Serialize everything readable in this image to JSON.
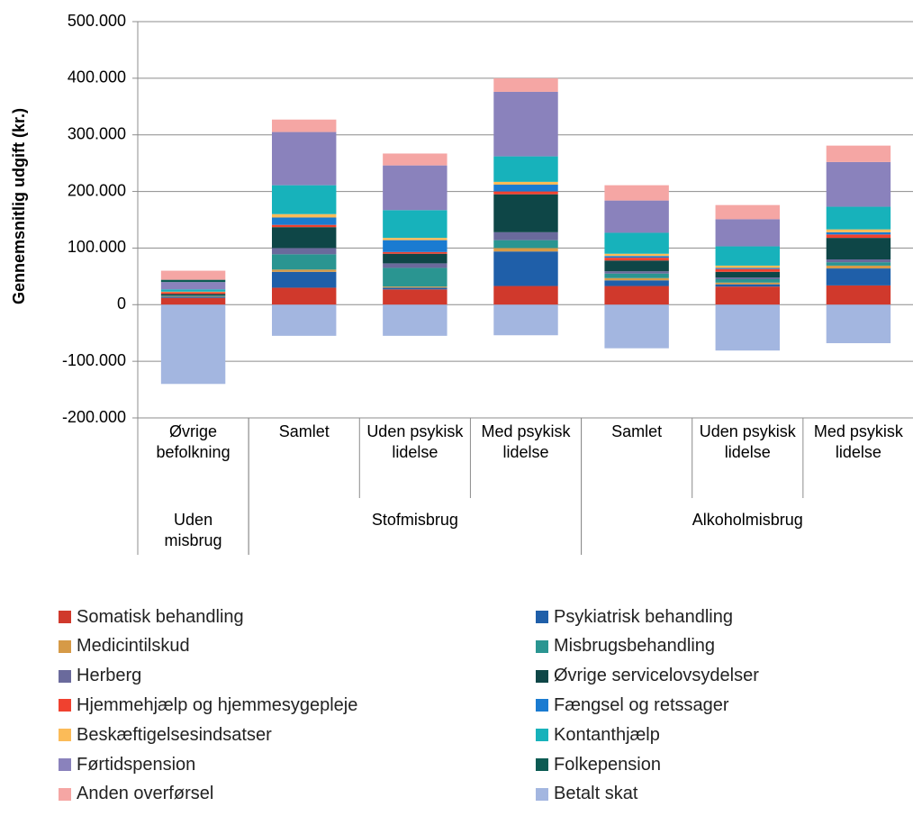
{
  "chart_data": {
    "type": "stacked_bar",
    "y_label": "Gennemsnitlig udgift (kr.)",
    "ylim": [
      -200000,
      500000
    ],
    "yticks": [
      {
        "value": -200000,
        "label": "-200.000"
      },
      {
        "value": -100000,
        "label": "-100.000"
      },
      0,
      {
        "value": 100000,
        "label": "100.000"
      },
      {
        "value": 200000,
        "label": "200.000"
      },
      {
        "value": 300000,
        "label": "300.000"
      },
      {
        "value": 400000,
        "label": "400.000"
      },
      {
        "value": 500000,
        "label": "500.000"
      }
    ],
    "grid": true,
    "legend": "bottom",
    "groups": [
      {
        "name": "Uden misbrug",
        "categories": [
          "Øvrige befolkning"
        ]
      },
      {
        "name": "Stofmisbrug",
        "categories": [
          "Samlet",
          "Uden psykisk lidelse",
          "Med psykisk lidelse"
        ]
      },
      {
        "name": "Alkoholmisbrug",
        "categories": [
          "Samlet",
          "Uden psykisk lidelse",
          "Med psykisk lidelse"
        ]
      }
    ],
    "series": [
      {
        "name": "Somatisk behandling",
        "color": "#d0392c",
        "values": [
          12000,
          30000,
          27000,
          33000,
          33000,
          32000,
          34000
        ]
      },
      {
        "name": "Psykiatrisk behandling",
        "color": "#1f5fa9",
        "values": [
          2000,
          28000,
          3000,
          61000,
          10000,
          4000,
          30000
        ]
      },
      {
        "name": "Medicintilskud",
        "color": "#d69a47",
        "values": [
          1000,
          4000,
          2000,
          6000,
          4000,
          3000,
          5000
        ]
      },
      {
        "name": "Misbrugsbehandling",
        "color": "#2a9591",
        "values": [
          1000,
          27000,
          33000,
          14000,
          8000,
          6000,
          6000
        ]
      },
      {
        "name": "Herberg",
        "color": "#6a6a9c",
        "values": [
          0,
          11000,
          8000,
          14000,
          4000,
          3000,
          5000
        ]
      },
      {
        "name": "Øvrige servicelovsydelser",
        "color": "#0e4647",
        "values": [
          3000,
          37000,
          17000,
          67000,
          19000,
          10000,
          38000
        ]
      },
      {
        "name": "Hjemmehjælp og hjemmesygepleje",
        "color": "#f0412f",
        "values": [
          3000,
          4000,
          3000,
          5000,
          5000,
          5000,
          6000
        ]
      },
      {
        "name": "Fængsel og retssager",
        "color": "#1a7bd1",
        "values": [
          0,
          13000,
          21000,
          12000,
          3000,
          2000,
          4000
        ]
      },
      {
        "name": "Beskæftigelsesindsatser",
        "color": "#fbbb58",
        "values": [
          1000,
          6000,
          4000,
          5000,
          4000,
          4000,
          5000
        ]
      },
      {
        "name": "Kontanthjælp",
        "color": "#17b2bb",
        "values": [
          4000,
          51000,
          49000,
          45000,
          37000,
          34000,
          40000
        ]
      },
      {
        "name": "Førtidspension",
        "color": "#8a82bc",
        "values": [
          13000,
          94000,
          79000,
          114000,
          57000,
          48000,
          79000
        ]
      },
      {
        "name": "Folkepension",
        "color": "#0c5b53",
        "values": [
          4000,
          0,
          0,
          0,
          0,
          0,
          0
        ]
      },
      {
        "name": "Anden overførsel",
        "color": "#f5a6a4",
        "values": [
          16000,
          22000,
          21000,
          24000,
          27000,
          25000,
          29000
        ]
      },
      {
        "name": "Betalt skat",
        "color": "#a3b6e0",
        "values": [
          -140000,
          -55000,
          -55000,
          -54000,
          -77000,
          -81000,
          -68000
        ]
      }
    ]
  }
}
